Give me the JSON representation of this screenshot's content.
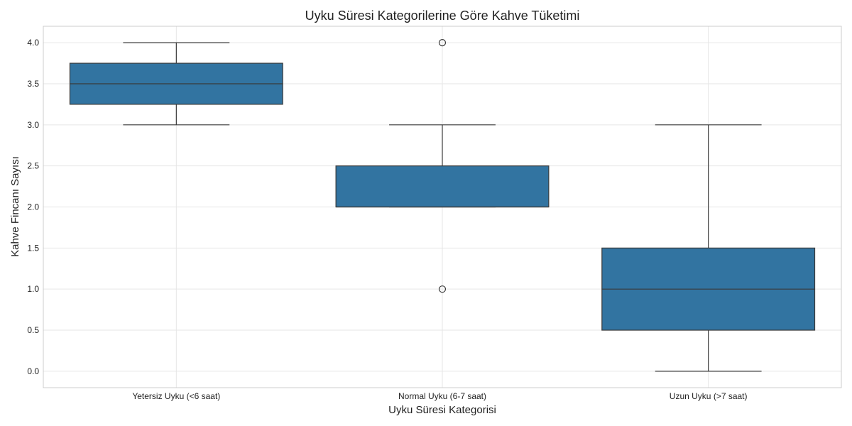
{
  "chart_data": {
    "type": "box",
    "title": "Uyku Süresi Kategorilerine Göre Kahve Tüketimi",
    "xlabel": "Uyku Süresi Kategorisi",
    "ylabel": "Kahve Fincanı Sayısı",
    "ylim": [
      -0.2,
      4.2
    ],
    "yticks": [
      0.0,
      0.5,
      1.0,
      1.5,
      2.0,
      2.5,
      3.0,
      3.5,
      4.0
    ],
    "ytick_labels": [
      "0.0",
      "0.5",
      "1.0",
      "1.5",
      "2.0",
      "2.5",
      "3.0",
      "3.5",
      "4.0"
    ],
    "grid": true,
    "box_color": "#3274a1",
    "line_color": "#3a3a3a",
    "categories": [
      "Yetersiz Uyku (<6 saat)",
      "Normal Uyku (6-7 saat)",
      "Uzun Uyku (>7 saat)"
    ],
    "boxes": [
      {
        "whisker_low": 3.0,
        "q1": 3.25,
        "median": 3.5,
        "q3": 3.75,
        "whisker_high": 4.0,
        "outliers": []
      },
      {
        "whisker_low": 2.0,
        "q1": 2.0,
        "median": 2.0,
        "q3": 2.5,
        "whisker_high": 3.0,
        "outliers": [
          1.0,
          4.0
        ]
      },
      {
        "whisker_low": 0.0,
        "q1": 0.5,
        "median": 1.0,
        "q3": 1.5,
        "whisker_high": 3.0,
        "outliers": []
      }
    ]
  }
}
